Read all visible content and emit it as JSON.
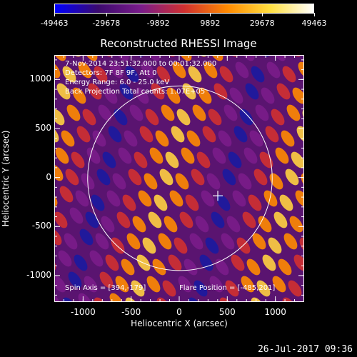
{
  "colorbar": {
    "labels": [
      "-49463",
      "-29678",
      "-9892",
      "9892",
      "29678",
      "49463"
    ]
  },
  "title": "Reconstructed RHESSI Image",
  "info": {
    "line1": "7-Nov-2014 23:51:32.000 to 00:01:32.000",
    "line2": "Detectors: 7F 8F 9F, Att 0",
    "line3": "Energy Range: 6.0 - 25.0 keV",
    "line4": "Back Projection    Total counts: 1.07E+05",
    "spin_axis": "Spin Axis = [394,-179]",
    "flare_position": "Flare Position = [-485,201]"
  },
  "axes": {
    "xlabel": "Heliocentric X (arcsec)",
    "ylabel": "Heliocentric Y (arcsec)",
    "xticks": [
      "-1000",
      "-500",
      "0",
      "500",
      "1000"
    ],
    "yticks": [
      "1000",
      "500",
      "0",
      "-500",
      "-1000"
    ]
  },
  "chart_data": {
    "type": "heatmap",
    "title": "Reconstructed RHESSI Image",
    "xlabel": "Heliocentric X (arcsec)",
    "ylabel": "Heliocentric Y (arcsec)",
    "xlim": [
      -1300,
      1300
    ],
    "ylim": [
      -1270,
      1250
    ],
    "xticks": [
      -1000,
      -500,
      0,
      500,
      1000
    ],
    "yticks": [
      -1000,
      -500,
      0,
      500,
      1000
    ],
    "color_range": [
      -49463,
      49463
    ],
    "colormap": [
      "#0000ff",
      "#3b0a6e",
      "#7a1c8a",
      "#d03030",
      "#ff8a00",
      "#ffe040",
      "#ffffff"
    ],
    "solar_disk": {
      "center": [
        0,
        0
      ],
      "radius": 960
    },
    "cross_marker": [
      394,
      -179
    ]
  },
  "timestamp": "26-Jul-2017 09:36"
}
